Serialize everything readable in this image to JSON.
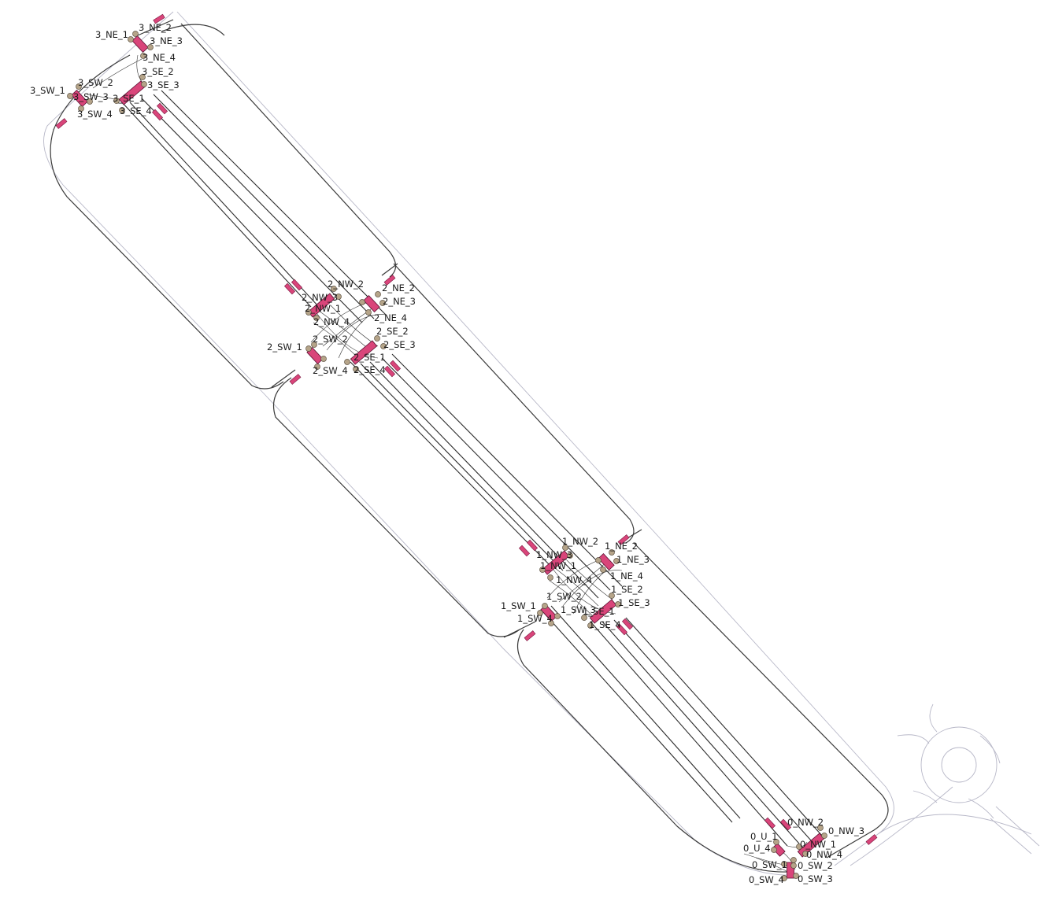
{
  "map": {
    "junctions": [
      {
        "id": "j3",
        "labels": [
          "3_NE_1",
          "3_NE_2",
          "3_NE_3",
          "3_NE_4",
          "3_SE_1",
          "3_SE_2",
          "3_SE_3",
          "3_SE_4",
          "3_SW_1",
          "3_SW_2",
          "3_SW_3",
          "3_SW_4"
        ]
      },
      {
        "id": "j2",
        "labels": [
          "2_NW_1",
          "2_NW_2",
          "2_NW_3",
          "2_NW_4",
          "2_NE_2",
          "2_NE_3",
          "2_NE_4",
          "2_SE_1",
          "2_SE_2",
          "2_SE_3",
          "2_SE_4",
          "2_SW_1",
          "2_SW_2",
          "2_SW_4"
        ]
      },
      {
        "id": "j1",
        "labels": [
          "1_NW_1",
          "1_NW_2",
          "1_NW_3",
          "1_NW_4",
          "1_NE_2",
          "1_NE_3",
          "1_NE_4",
          "1_SE_1",
          "1_SE_2",
          "1_SE_3",
          "1_SE_4",
          "1_SW_1",
          "1_SW_2",
          "1_SW_3",
          "1_SW_4"
        ]
      },
      {
        "id": "j0",
        "labels": [
          "0_NW_1",
          "0_NW_2",
          "0_NW_3",
          "0_NW_4",
          "0_U_1",
          "0_U_4",
          "0_SW_1",
          "0_SW_2",
          "0_SW_3",
          "0_SW_4"
        ]
      }
    ],
    "colors": {
      "signal_bar": "#d9457a",
      "node": "#b5a489",
      "road": "#3a3a3a",
      "edge": "#b8b8c8"
    }
  }
}
